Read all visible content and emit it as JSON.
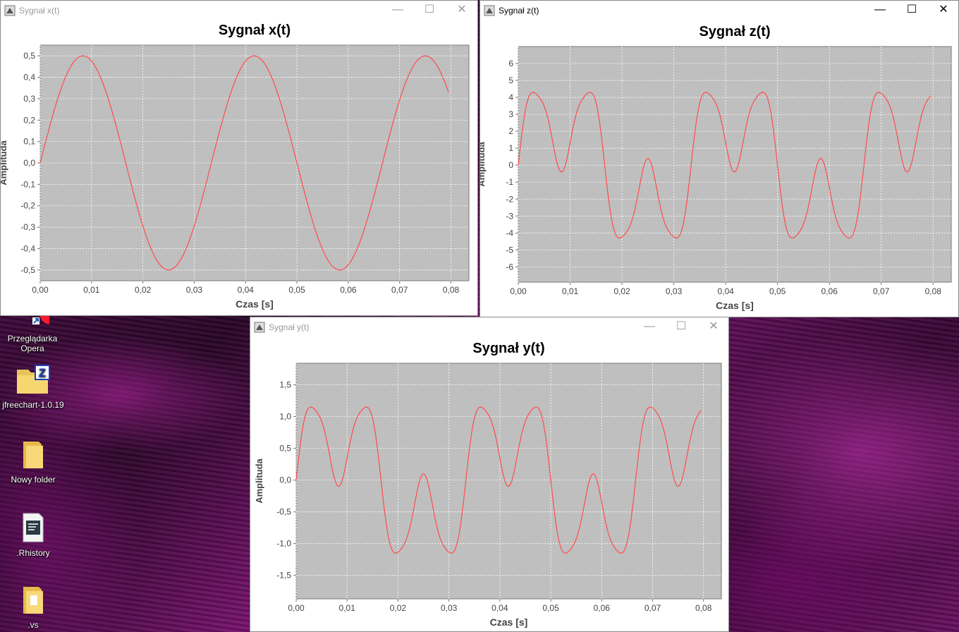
{
  "desktop": {
    "icons": [
      {
        "label": "Przeglądarka Opera",
        "icon": "opera-icon"
      },
      {
        "label": "jfreechart-1.0.19",
        "icon": "zip-folder-icon"
      },
      {
        "label": "Nowy folder",
        "icon": "folder-icon"
      },
      {
        "label": ".Rhistory",
        "icon": "text-file-icon"
      },
      {
        "label": ".vs",
        "icon": "folder-icon"
      }
    ]
  },
  "windows": {
    "x": {
      "title": "Sygnał x(t)",
      "controls": {
        "minimize": "—",
        "maximize": "☐",
        "close": "✕"
      },
      "chart_data": {
        "type": "line",
        "title": "Sygnał x(t)",
        "xlabel": "Czas [s]",
        "ylabel": "Amplituda",
        "x_ticks": [
          "0,00",
          "0,01",
          "0,02",
          "0,03",
          "0,04",
          "0,05",
          "0,06",
          "0,07",
          "0,08"
        ],
        "y_ticks": [
          "0,5",
          "0,4",
          "0,3",
          "0,2",
          "0,1",
          "0,0",
          "-0,1",
          "-0,2",
          "-0,3",
          "-0,4",
          "-0,5"
        ],
        "xlim": [
          0,
          0.0835
        ],
        "ylim": [
          -0.55,
          0.55
        ],
        "x_range": [
          0,
          0.0795
        ],
        "formula": "0.5*sin(2*pi*30*t)",
        "series_color": "#ff4c4c",
        "plot_bg": "#bfbfbf",
        "grid": true
      }
    },
    "z": {
      "title": "Sygnał z(t)",
      "controls": {
        "minimize": "—",
        "maximize": "☐",
        "close": "✕"
      },
      "chart_data": {
        "type": "line",
        "title": "Sygnał z(t)",
        "xlabel": "Czas [s]",
        "ylabel": "Amplituda",
        "x_ticks": [
          "0,00",
          "0,01",
          "0,02",
          "0,03",
          "0,04",
          "0,05",
          "0,06",
          "0,07",
          "0,08"
        ],
        "y_ticks": [
          "6",
          "5",
          "4",
          "3",
          "2",
          "1",
          "0",
          "-1",
          "-2",
          "-3",
          "-4",
          "-5",
          "-6"
        ],
        "xlim": [
          0,
          0.0835
        ],
        "ylim": [
          -6.9,
          7.0
        ],
        "x_range": [
          0,
          0.0795
        ],
        "formula": "3*sin(2*pi*30*t)+3*sin(2*pi*90*t)+0.4*sin(2*pi*210*t)",
        "series_color": "#ff4c4c",
        "plot_bg": "#bfbfbf",
        "grid": true
      }
    },
    "y": {
      "title": "Sygnał y(t)",
      "controls": {
        "minimize": "—",
        "maximize": "☐",
        "close": "✕"
      },
      "chart_data": {
        "type": "line",
        "title": "Sygnał y(t)",
        "xlabel": "Czas [s]",
        "ylabel": "Amplituda",
        "x_ticks": [
          "0,00",
          "0,01",
          "0,02",
          "0,03",
          "0,04",
          "0,05",
          "0,06",
          "0,07",
          "0,08"
        ],
        "y_ticks": [
          "1,5",
          "1,0",
          "0,5",
          "0,0",
          "-0,5",
          "-1,0",
          "-1,5"
        ],
        "xlim": [
          0,
          0.0835
        ],
        "ylim": [
          -1.87,
          1.84
        ],
        "x_range": [
          0,
          0.0795
        ],
        "formula": "0.8*sin(2*pi*30*t)+0.8*sin(2*pi*90*t)+0.1*sin(2*pi*210*t)",
        "series_color": "#ff4c4c",
        "plot_bg": "#bfbfbf",
        "grid": true
      }
    }
  }
}
